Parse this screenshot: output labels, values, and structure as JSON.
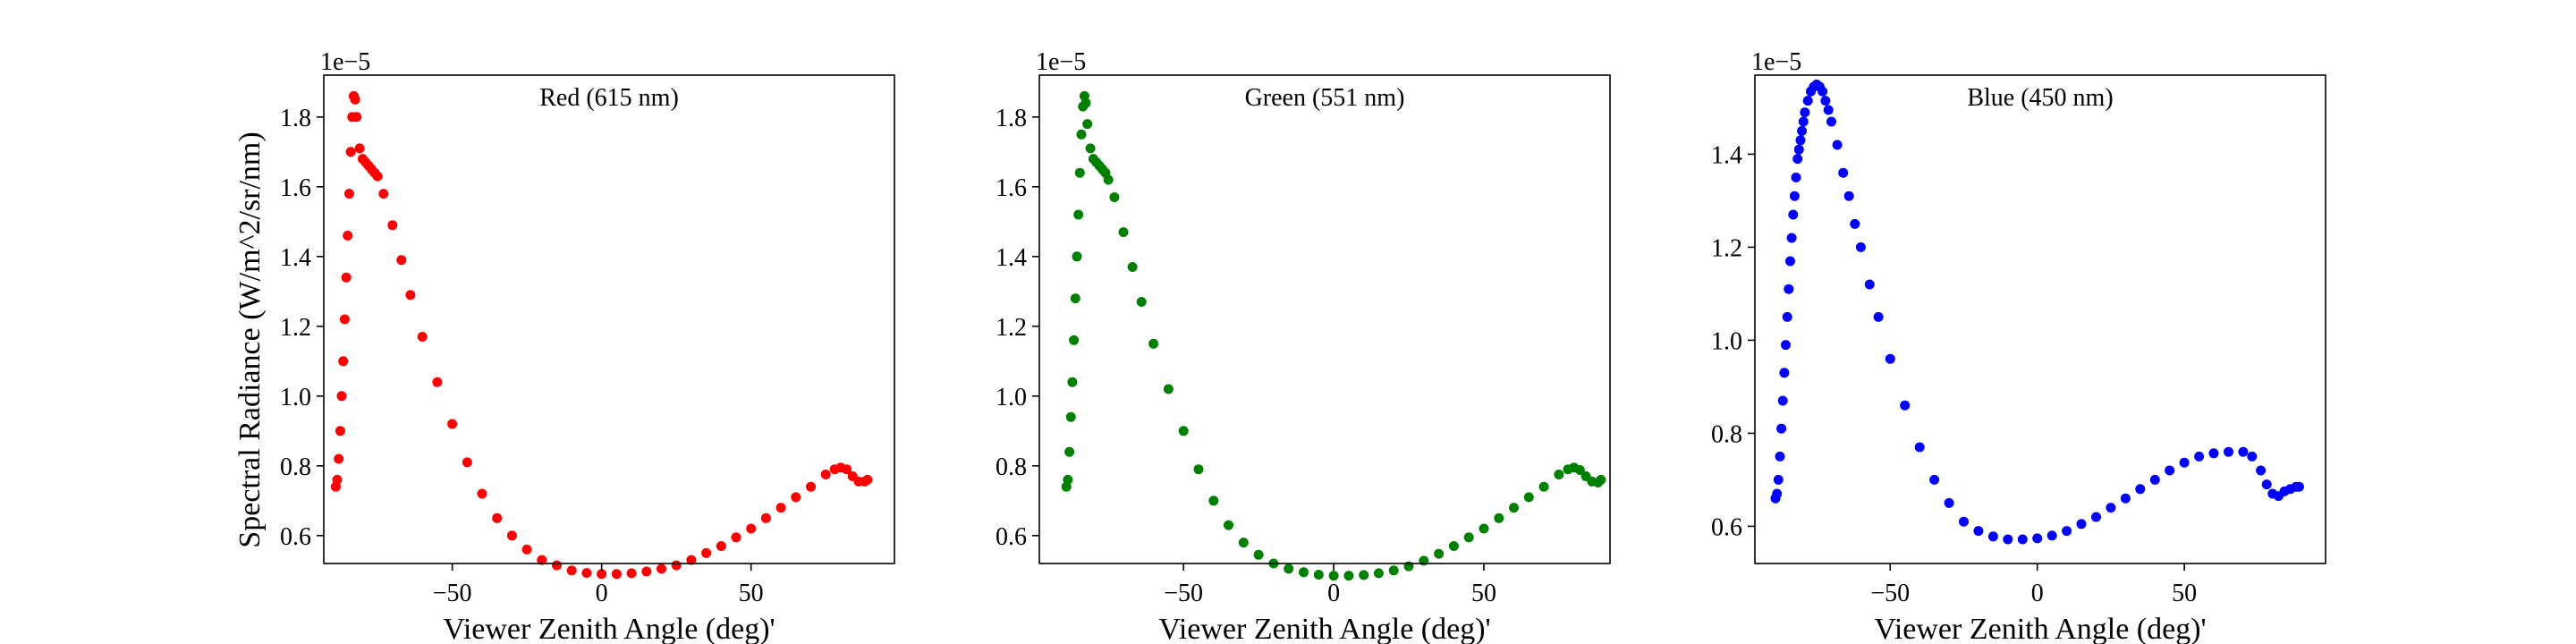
{
  "figure": {
    "ylabel": "Spectral Radiance (W/m^2/sr/nm)"
  },
  "chart_data": [
    {
      "type": "scatter",
      "title": "Red (615 nm)",
      "xlabel": "Viewer Zenith Angle (deg)'",
      "ylabel": "Spectral Radiance (W/m^2/sr/nm)",
      "color": "#ff0000",
      "scale_note": "1e−5",
      "xlim": [
        -93,
        98
      ],
      "ylim": [
        0.52,
        1.92
      ],
      "xticks": [
        -50,
        0,
        50
      ],
      "xtick_labels": [
        "−50",
        "0",
        "50"
      ],
      "yticks": [
        0.6,
        0.8,
        1.0,
        1.2,
        1.4,
        1.6,
        1.8
      ],
      "ytick_labels": [
        "0.6",
        "0.8",
        "1.0",
        "1.2",
        "1.4",
        "1.6",
        "1.8"
      ],
      "series": [
        {
          "x": [
            -89,
            -88.5,
            -88,
            -87.5,
            -87,
            -86.5,
            -86,
            -85.5,
            -85,
            -84.5,
            -84,
            -83.5,
            -83,
            -82.5,
            -82,
            -81,
            -80,
            -79,
            -78,
            -77,
            -76,
            -75,
            -73,
            -70,
            -67,
            -64,
            -60,
            -55,
            -50,
            -45,
            -40,
            -35,
            -30,
            -25,
            -20,
            -15,
            -10,
            -5,
            0,
            5,
            10,
            15,
            20,
            25,
            30,
            35,
            40,
            45,
            50,
            55,
            60,
            65,
            70,
            75,
            78,
            80,
            82,
            84,
            86,
            88,
            89
          ],
          "y": [
            0.74,
            0.76,
            0.82,
            0.9,
            1.0,
            1.1,
            1.22,
            1.34,
            1.46,
            1.58,
            1.7,
            1.8,
            1.86,
            1.85,
            1.8,
            1.71,
            1.68,
            1.67,
            1.66,
            1.65,
            1.64,
            1.63,
            1.58,
            1.49,
            1.39,
            1.29,
            1.17,
            1.04,
            0.92,
            0.81,
            0.72,
            0.65,
            0.6,
            0.56,
            0.53,
            0.515,
            0.5,
            0.493,
            0.49,
            0.49,
            0.492,
            0.497,
            0.505,
            0.515,
            0.53,
            0.55,
            0.57,
            0.595,
            0.62,
            0.65,
            0.68,
            0.71,
            0.74,
            0.775,
            0.79,
            0.795,
            0.79,
            0.77,
            0.755,
            0.755,
            0.76
          ]
        }
      ]
    },
    {
      "type": "scatter",
      "title": "Green (551 nm)",
      "xlabel": "Viewer Zenith Angle (deg)'",
      "ylabel": "",
      "color": "#008000",
      "scale_note": "1e−5",
      "xlim": [
        -98,
        92
      ],
      "ylim": [
        0.52,
        1.92
      ],
      "xticks": [
        -50,
        0,
        50
      ],
      "xtick_labels": [
        "−50",
        "0",
        "50"
      ],
      "yticks": [
        0.6,
        0.8,
        1.0,
        1.2,
        1.4,
        1.6,
        1.8
      ],
      "ytick_labels": [
        "0.6",
        "0.8",
        "1.0",
        "1.2",
        "1.4",
        "1.6",
        "1.8"
      ],
      "series": [
        {
          "x": [
            -89,
            -88.5,
            -88,
            -87.5,
            -87,
            -86.5,
            -86,
            -85.5,
            -85,
            -84.5,
            -84,
            -83.5,
            -83,
            -82.5,
            -82,
            -81,
            -80,
            -79,
            -78,
            -77,
            -76,
            -75,
            -73,
            -70,
            -67,
            -64,
            -60,
            -55,
            -50,
            -45,
            -40,
            -35,
            -30,
            -25,
            -20,
            -15,
            -10,
            -5,
            0,
            5,
            10,
            15,
            20,
            25,
            30,
            35,
            40,
            45,
            50,
            55,
            60,
            65,
            70,
            75,
            78,
            80,
            82,
            84,
            86,
            88,
            89
          ],
          "y": [
            0.74,
            0.76,
            0.84,
            0.94,
            1.04,
            1.16,
            1.28,
            1.4,
            1.52,
            1.64,
            1.75,
            1.83,
            1.86,
            1.84,
            1.78,
            1.71,
            1.68,
            1.67,
            1.66,
            1.65,
            1.64,
            1.62,
            1.57,
            1.47,
            1.37,
            1.27,
            1.15,
            1.02,
            0.9,
            0.79,
            0.7,
            0.63,
            0.58,
            0.545,
            0.52,
            0.505,
            0.495,
            0.488,
            0.485,
            0.485,
            0.487,
            0.492,
            0.5,
            0.512,
            0.528,
            0.548,
            0.57,
            0.595,
            0.62,
            0.65,
            0.68,
            0.71,
            0.74,
            0.775,
            0.79,
            0.795,
            0.788,
            0.77,
            0.755,
            0.752,
            0.76
          ]
        }
      ]
    },
    {
      "type": "scatter",
      "title": "Blue (450 nm)",
      "xlabel": "Viewer Zenith Angle (deg)'",
      "ylabel": "",
      "color": "#0000ff",
      "scale_note": "1e−5",
      "xlim": [
        -96,
        98
      ],
      "ylim": [
        0.52,
        1.57
      ],
      "xticks": [
        -50,
        0,
        50
      ],
      "xtick_labels": [
        "−50",
        "0",
        "50"
      ],
      "yticks": [
        0.6,
        0.8,
        1.0,
        1.2,
        1.4
      ],
      "ytick_labels": [
        "0.6",
        "0.8",
        "1.0",
        "1.2",
        "1.4"
      ],
      "series": [
        {
          "x": [
            -89,
            -88.5,
            -88,
            -87.5,
            -87,
            -86.5,
            -86,
            -85.5,
            -85,
            -84.5,
            -84,
            -83.5,
            -83,
            -82.5,
            -82,
            -81.5,
            -81,
            -80.5,
            -80,
            -79.5,
            -79,
            -78,
            -77,
            -76,
            -75,
            -74,
            -73,
            -72,
            -71,
            -70,
            -68,
            -66,
            -64,
            -62,
            -60,
            -57,
            -54,
            -50,
            -45,
            -40,
            -35,
            -30,
            -25,
            -20,
            -15,
            -10,
            -5,
            0,
            5,
            10,
            15,
            20,
            25,
            30,
            35,
            40,
            45,
            50,
            55,
            60,
            65,
            70,
            73,
            76,
            78,
            80,
            82,
            84,
            86,
            88,
            89
          ],
          "y": [
            0.66,
            0.67,
            0.7,
            0.75,
            0.81,
            0.87,
            0.93,
            0.99,
            1.05,
            1.11,
            1.17,
            1.22,
            1.27,
            1.31,
            1.35,
            1.39,
            1.41,
            1.43,
            1.45,
            1.47,
            1.49,
            1.515,
            1.535,
            1.545,
            1.55,
            1.545,
            1.535,
            1.515,
            1.495,
            1.47,
            1.42,
            1.36,
            1.31,
            1.25,
            1.2,
            1.12,
            1.05,
            0.96,
            0.86,
            0.77,
            0.7,
            0.65,
            0.61,
            0.59,
            0.578,
            0.572,
            0.572,
            0.574,
            0.58,
            0.59,
            0.605,
            0.62,
            0.64,
            0.66,
            0.68,
            0.7,
            0.72,
            0.737,
            0.75,
            0.757,
            0.76,
            0.76,
            0.75,
            0.72,
            0.69,
            0.67,
            0.665,
            0.675,
            0.68,
            0.685,
            0.685
          ]
        }
      ]
    }
  ]
}
